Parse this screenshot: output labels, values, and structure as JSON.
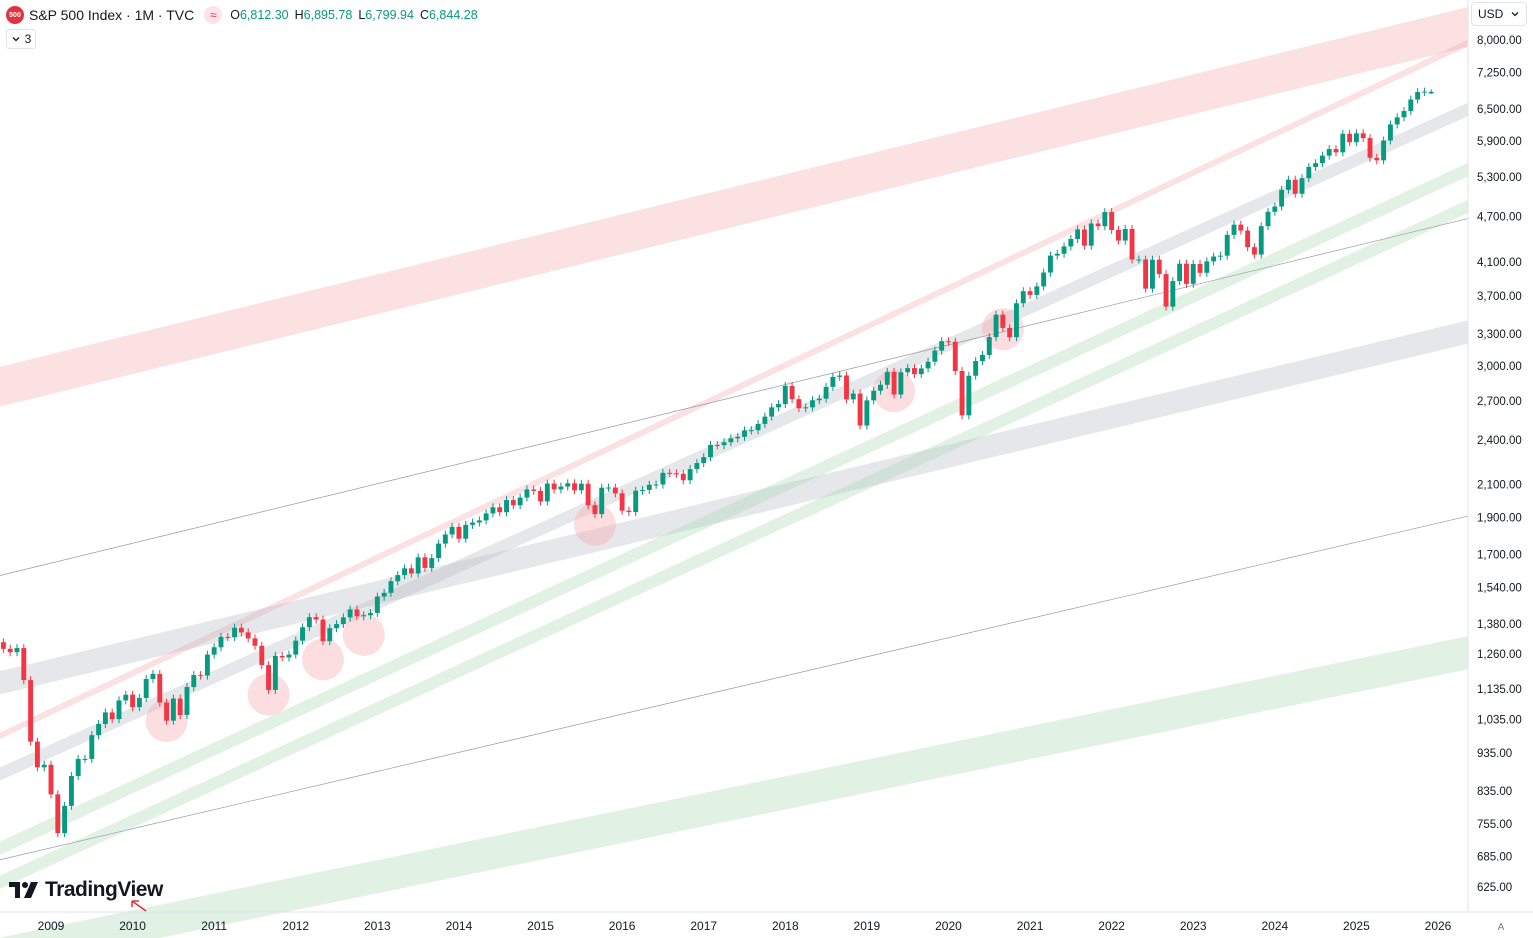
{
  "header": {
    "symbol_badge": "500",
    "title": "S&P 500 Index · 1M · TVC",
    "ohlc": [
      {
        "key": "O",
        "value": "6,812.30"
      },
      {
        "key": "H",
        "value": "6,895.78"
      },
      {
        "key": "L",
        "value": "6,799.94"
      },
      {
        "key": "C",
        "value": "6,844.28"
      }
    ],
    "indicator_count": "3"
  },
  "currency": "USD",
  "auto_label": "A",
  "logo_text": "TradingView",
  "colors": {
    "up": "#089981",
    "down": "#f23645",
    "band_red": "#f7a1a9",
    "band_gray": "#b2b5be",
    "band_green": "#a3d7ad",
    "line": "#9598a1"
  },
  "icons": [
    "chevron-down-icon",
    "wave-icon",
    "tradingview-logo-icon",
    "red-arrow-icon"
  ],
  "chart_data": {
    "type": "candlestick",
    "title": "S&P 500 Index · 1M · TVC",
    "scale": "log",
    "ylim": [
      600,
      8600
    ],
    "y_ticks": [
      {
        "v": 8000,
        "label": "8,000.00"
      },
      {
        "v": 7250,
        "label": "7,250.00"
      },
      {
        "v": 6500,
        "label": "6,500.00"
      },
      {
        "v": 5900,
        "label": "5,900.00"
      },
      {
        "v": 5300,
        "label": "5,300.00"
      },
      {
        "v": 4700,
        "label": "4,700.00"
      },
      {
        "v": 4100,
        "label": "4,100.00"
      },
      {
        "v": 3700,
        "label": "3,700.00"
      },
      {
        "v": 3300,
        "label": "3,300.00"
      },
      {
        "v": 3000,
        "label": "3,000.00"
      },
      {
        "v": 2700,
        "label": "2,700.00"
      },
      {
        "v": 2400,
        "label": "2,400.00"
      },
      {
        "v": 2100,
        "label": "2,100.00"
      },
      {
        "v": 1900,
        "label": "1,900.00"
      },
      {
        "v": 1700,
        "label": "1,700.00"
      },
      {
        "v": 1540,
        "label": "1,540.00"
      },
      {
        "v": 1380,
        "label": "1,380.00"
      },
      {
        "v": 1260,
        "label": "1,260.00"
      },
      {
        "v": 1135,
        "label": "1,135.00"
      },
      {
        "v": 1035,
        "label": "1,035.00"
      },
      {
        "v": 935,
        "label": "935.00"
      },
      {
        "v": 835,
        "label": "835.00"
      },
      {
        "v": 755,
        "label": "755.00"
      },
      {
        "v": 685,
        "label": "685.00"
      },
      {
        "v": 625,
        "label": "625.00"
      }
    ],
    "x_ticks": [
      "2009",
      "2010",
      "2011",
      "2012",
      "2013",
      "2014",
      "2015",
      "2016",
      "2017",
      "2018",
      "2019",
      "2020",
      "2021",
      "2022",
      "2023",
      "2024",
      "2025",
      "2026"
    ],
    "x_range": [
      "2008-06",
      "2026-04"
    ],
    "closes": [
      [
        "2008-06",
        1280
      ],
      [
        "2008-07",
        1267
      ],
      [
        "2008-08",
        1283
      ],
      [
        "2008-09",
        1165
      ],
      [
        "2008-10",
        968
      ],
      [
        "2008-11",
        896
      ],
      [
        "2008-12",
        903
      ],
      [
        "2009-01",
        826
      ],
      [
        "2009-02",
        735
      ],
      [
        "2009-03",
        798
      ],
      [
        "2009-04",
        873
      ],
      [
        "2009-05",
        919
      ],
      [
        "2009-06",
        919
      ],
      [
        "2009-07",
        987
      ],
      [
        "2009-08",
        1021
      ],
      [
        "2009-09",
        1057
      ],
      [
        "2009-10",
        1036
      ],
      [
        "2009-11",
        1096
      ],
      [
        "2009-12",
        1115
      ],
      [
        "2010-01",
        1074
      ],
      [
        "2010-02",
        1104
      ],
      [
        "2010-03",
        1169
      ],
      [
        "2010-04",
        1187
      ],
      [
        "2010-05",
        1089
      ],
      [
        "2010-06",
        1031
      ],
      [
        "2010-07",
        1102
      ],
      [
        "2010-08",
        1049
      ],
      [
        "2010-09",
        1141
      ],
      [
        "2010-10",
        1183
      ],
      [
        "2010-11",
        1181
      ],
      [
        "2010-12",
        1258
      ],
      [
        "2011-01",
        1286
      ],
      [
        "2011-02",
        1327
      ],
      [
        "2011-03",
        1326
      ],
      [
        "2011-04",
        1364
      ],
      [
        "2011-05",
        1345
      ],
      [
        "2011-06",
        1321
      ],
      [
        "2011-07",
        1292
      ],
      [
        "2011-08",
        1219
      ],
      [
        "2011-09",
        1131
      ],
      [
        "2011-10",
        1253
      ],
      [
        "2011-11",
        1247
      ],
      [
        "2011-12",
        1258
      ],
      [
        "2012-01",
        1312
      ],
      [
        "2012-02",
        1366
      ],
      [
        "2012-03",
        1408
      ],
      [
        "2012-04",
        1398
      ],
      [
        "2012-05",
        1310
      ],
      [
        "2012-06",
        1362
      ],
      [
        "2012-07",
        1379
      ],
      [
        "2012-08",
        1407
      ],
      [
        "2012-09",
        1441
      ],
      [
        "2012-10",
        1412
      ],
      [
        "2012-11",
        1416
      ],
      [
        "2012-12",
        1426
      ],
      [
        "2013-01",
        1498
      ],
      [
        "2013-02",
        1515
      ],
      [
        "2013-03",
        1569
      ],
      [
        "2013-04",
        1598
      ],
      [
        "2013-05",
        1631
      ],
      [
        "2013-06",
        1606
      ],
      [
        "2013-07",
        1686
      ],
      [
        "2013-08",
        1633
      ],
      [
        "2013-09",
        1682
      ],
      [
        "2013-10",
        1757
      ],
      [
        "2013-11",
        1806
      ],
      [
        "2013-12",
        1848
      ],
      [
        "2014-01",
        1783
      ],
      [
        "2014-02",
        1859
      ],
      [
        "2014-03",
        1872
      ],
      [
        "2014-04",
        1884
      ],
      [
        "2014-05",
        1924
      ],
      [
        "2014-06",
        1960
      ],
      [
        "2014-07",
        1931
      ],
      [
        "2014-08",
        2003
      ],
      [
        "2014-09",
        1972
      ],
      [
        "2014-10",
        2018
      ],
      [
        "2014-11",
        2068
      ],
      [
        "2014-12",
        2059
      ],
      [
        "2015-01",
        1995
      ],
      [
        "2015-02",
        2105
      ],
      [
        "2015-03",
        2068
      ],
      [
        "2015-04",
        2086
      ],
      [
        "2015-05",
        2107
      ],
      [
        "2015-06",
        2063
      ],
      [
        "2015-07",
        2104
      ],
      [
        "2015-08",
        1972
      ],
      [
        "2015-09",
        1920
      ],
      [
        "2015-10",
        2079
      ],
      [
        "2015-11",
        2080
      ],
      [
        "2015-12",
        2044
      ],
      [
        "2016-01",
        1940
      ],
      [
        "2016-02",
        1932
      ],
      [
        "2016-03",
        2060
      ],
      [
        "2016-04",
        2065
      ],
      [
        "2016-05",
        2097
      ],
      [
        "2016-06",
        2099
      ],
      [
        "2016-07",
        2174
      ],
      [
        "2016-08",
        2171
      ],
      [
        "2016-09",
        2168
      ],
      [
        "2016-10",
        2126
      ],
      [
        "2016-11",
        2199
      ],
      [
        "2016-12",
        2239
      ],
      [
        "2017-01",
        2279
      ],
      [
        "2017-02",
        2364
      ],
      [
        "2017-03",
        2363
      ],
      [
        "2017-04",
        2384
      ],
      [
        "2017-05",
        2412
      ],
      [
        "2017-06",
        2423
      ],
      [
        "2017-07",
        2470
      ],
      [
        "2017-08",
        2472
      ],
      [
        "2017-09",
        2519
      ],
      [
        "2017-10",
        2575
      ],
      [
        "2017-11",
        2648
      ],
      [
        "2017-12",
        2674
      ],
      [
        "2018-01",
        2824
      ],
      [
        "2018-02",
        2714
      ],
      [
        "2018-03",
        2641
      ],
      [
        "2018-04",
        2648
      ],
      [
        "2018-05",
        2705
      ],
      [
        "2018-06",
        2718
      ],
      [
        "2018-07",
        2816
      ],
      [
        "2018-08",
        2902
      ],
      [
        "2018-09",
        2914
      ],
      [
        "2018-10",
        2712
      ],
      [
        "2018-11",
        2760
      ],
      [
        "2018-12",
        2507
      ],
      [
        "2019-01",
        2704
      ],
      [
        "2019-02",
        2784
      ],
      [
        "2019-03",
        2834
      ],
      [
        "2019-04",
        2946
      ],
      [
        "2019-05",
        2752
      ],
      [
        "2019-06",
        2942
      ],
      [
        "2019-07",
        2980
      ],
      [
        "2019-08",
        2926
      ],
      [
        "2019-09",
        2977
      ],
      [
        "2019-10",
        3038
      ],
      [
        "2019-11",
        3141
      ],
      [
        "2019-12",
        3231
      ],
      [
        "2020-01",
        3226
      ],
      [
        "2020-02",
        2954
      ],
      [
        "2020-03",
        2585
      ],
      [
        "2020-04",
        2912
      ],
      [
        "2020-05",
        3044
      ],
      [
        "2020-06",
        3100
      ],
      [
        "2020-07",
        3271
      ],
      [
        "2020-08",
        3500
      ],
      [
        "2020-09",
        3363
      ],
      [
        "2020-10",
        3270
      ],
      [
        "2020-11",
        3622
      ],
      [
        "2020-12",
        3756
      ],
      [
        "2021-01",
        3714
      ],
      [
        "2021-02",
        3811
      ],
      [
        "2021-03",
        3973
      ],
      [
        "2021-04",
        4181
      ],
      [
        "2021-05",
        4204
      ],
      [
        "2021-06",
        4298
      ],
      [
        "2021-07",
        4395
      ],
      [
        "2021-08",
        4523
      ],
      [
        "2021-09",
        4308
      ],
      [
        "2021-10",
        4605
      ],
      [
        "2021-11",
        4567
      ],
      [
        "2021-12",
        4766
      ],
      [
        "2022-01",
        4516
      ],
      [
        "2022-02",
        4374
      ],
      [
        "2022-03",
        4530
      ],
      [
        "2022-04",
        4132
      ],
      [
        "2022-05",
        4132
      ],
      [
        "2022-06",
        3785
      ],
      [
        "2022-07",
        4130
      ],
      [
        "2022-08",
        3955
      ],
      [
        "2022-09",
        3586
      ],
      [
        "2022-10",
        3872
      ],
      [
        "2022-11",
        4080
      ],
      [
        "2022-12",
        3840
      ],
      [
        "2023-01",
        4077
      ],
      [
        "2023-02",
        3970
      ],
      [
        "2023-03",
        4109
      ],
      [
        "2023-04",
        4169
      ],
      [
        "2023-05",
        4180
      ],
      [
        "2023-06",
        4450
      ],
      [
        "2023-07",
        4589
      ],
      [
        "2023-08",
        4508
      ],
      [
        "2023-09",
        4288
      ],
      [
        "2023-10",
        4194
      ],
      [
        "2023-11",
        4568
      ],
      [
        "2023-12",
        4770
      ],
      [
        "2024-01",
        4846
      ],
      [
        "2024-02",
        5096
      ],
      [
        "2024-03",
        5254
      ],
      [
        "2024-04",
        5036
      ],
      [
        "2024-05",
        5278
      ],
      [
        "2024-06",
        5460
      ],
      [
        "2024-07",
        5522
      ],
      [
        "2024-08",
        5648
      ],
      [
        "2024-09",
        5762
      ],
      [
        "2024-10",
        5705
      ],
      [
        "2024-11",
        6032
      ],
      [
        "2024-12",
        5882
      ],
      [
        "2025-01",
        6041
      ],
      [
        "2025-02",
        5955
      ],
      [
        "2025-03",
        5612
      ],
      [
        "2025-04",
        5569
      ],
      [
        "2025-05",
        5912
      ],
      [
        "2025-06",
        6205
      ],
      [
        "2025-07",
        6339
      ],
      [
        "2025-08",
        6460
      ],
      [
        "2025-09",
        6688
      ],
      [
        "2025-10",
        6840
      ],
      [
        "2025-11",
        6849
      ],
      [
        "2025-12",
        6844
      ]
    ],
    "last_candle": {
      "open": 6812.3,
      "high": 6895.78,
      "low": 6799.94,
      "close": 6844.28
    },
    "bands": [
      {
        "color": "red",
        "p1": [
          "2008-06",
          3000
        ],
        "p2": [
          "2025-12",
          8600
        ],
        "thickness_log": 0.12
      },
      {
        "color": "red",
        "p1": [
          "2008-06",
          1000
        ],
        "p2": [
          "2025-12",
          7600
        ],
        "thickness_log": 0.02
      },
      {
        "color": "gray",
        "p1": [
          "2008-06",
          1200
        ],
        "p2": [
          "2025-12",
          3350
        ],
        "thickness_log": 0.07
      },
      {
        "color": "gray",
        "p1": [
          "2008-06",
          900
        ],
        "p2": [
          "2025-12",
          6300
        ],
        "thickness_log": 0.04
      },
      {
        "color": "green",
        "p1": [
          "2008-06",
          720
        ],
        "p2": [
          "2025-12",
          5250
        ],
        "thickness_log": 0.04
      },
      {
        "color": "green",
        "p1": [
          "2008-06",
          650
        ],
        "p2": [
          "2025-12",
          4700
        ],
        "thickness_log": 0.04
      },
      {
        "color": "green",
        "p1": [
          "2010-08",
          600
        ],
        "p2": [
          "2025-12",
          1300
        ],
        "thickness_log": 0.1
      }
    ],
    "lines": [
      {
        "p1": [
          "2008-06",
          1600
        ],
        "p2": [
          "2025-12",
          4550
        ]
      },
      {
        "p1": [
          "2008-06",
          680
        ],
        "p2": [
          "2025-12",
          1860
        ]
      }
    ],
    "highlight_circles": [
      [
        "2010-06",
        1030
      ],
      [
        "2011-09",
        1115
      ],
      [
        "2012-05",
        1240
      ],
      [
        "2012-11",
        1335
      ],
      [
        "2015-09",
        1860
      ],
      [
        "2019-05",
        2780
      ],
      [
        "2020-09",
        3350
      ]
    ]
  }
}
